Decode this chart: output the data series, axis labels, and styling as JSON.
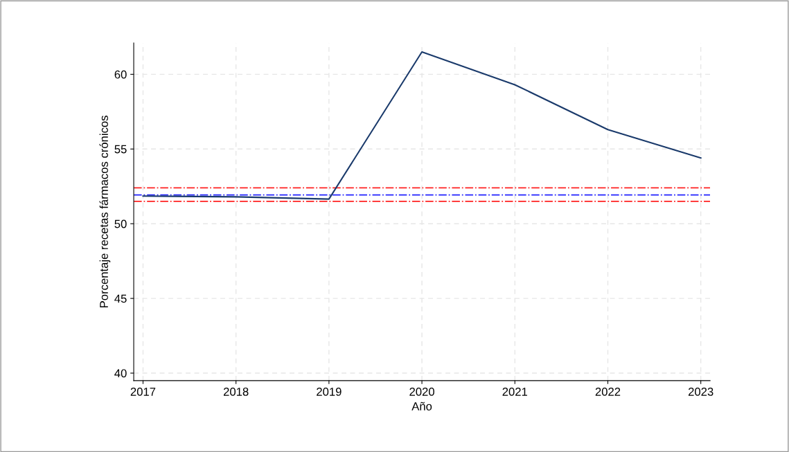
{
  "chart_data": {
    "type": "line",
    "xlabel": "Año",
    "ylabel": "Porcentaje recetas fármacos crónicos",
    "x": [
      2017,
      2018,
      2019,
      2020,
      2021,
      2022,
      2023
    ],
    "series": [
      {
        "color": "#1a3a6b",
        "values": [
          51.85,
          51.8,
          51.65,
          61.5,
          59.3,
          56.3,
          54.4
        ]
      }
    ],
    "ref_lines": [
      {
        "axis": "y",
        "value": 52.4,
        "color": "#ff2020",
        "line_style": "dashdot"
      },
      {
        "axis": "y",
        "value": 51.93,
        "color": "#2020ff",
        "line_style": "dashdot"
      },
      {
        "axis": "y",
        "value": 51.5,
        "color": "#ff2020",
        "line_style": "dashdot"
      }
    ],
    "xlim": [
      2016.9,
      2023.1
    ],
    "ylim": [
      39.5,
      62.1
    ],
    "xticks": [
      2017,
      2018,
      2019,
      2020,
      2021,
      2022,
      2023
    ],
    "yticks": [
      40,
      45,
      50,
      55,
      60
    ],
    "grid": true,
    "marker": "none",
    "line_style": "solid"
  }
}
